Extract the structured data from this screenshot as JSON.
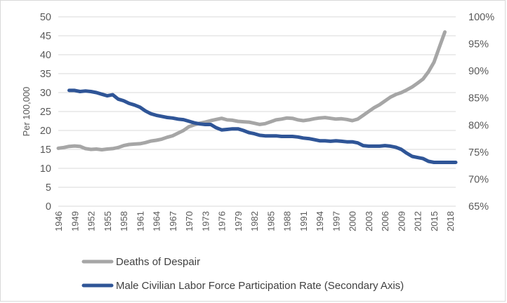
{
  "chart_data": {
    "type": "line",
    "title": "",
    "ylabel": "Per 100,000",
    "y2label": "",
    "ylim": [
      0,
      50
    ],
    "y_ticks": [
      0,
      5,
      10,
      15,
      20,
      25,
      30,
      35,
      40,
      45,
      50
    ],
    "y2lim": [
      0.65,
      1.0
    ],
    "y2_ticks": [
      "65%",
      "70%",
      "75%",
      "80%",
      "85%",
      "90%",
      "95%",
      "100%"
    ],
    "x_ticks": [
      1946,
      1949,
      1952,
      1955,
      1958,
      1961,
      1964,
      1967,
      1970,
      1973,
      1976,
      1979,
      1982,
      1985,
      1988,
      1991,
      1994,
      1997,
      2000,
      2003,
      2006,
      2009,
      2012,
      2015,
      2018
    ],
    "xlim": [
      1946,
      2019
    ],
    "grid": true,
    "legend_position": "bottom",
    "series": [
      {
        "name": "Deaths of Despair",
        "axis": "primary",
        "color": "#a6a6a6",
        "x": [
          1946,
          1947,
          1948,
          1949,
          1950,
          1951,
          1952,
          1953,
          1954,
          1955,
          1956,
          1957,
          1958,
          1959,
          1960,
          1961,
          1962,
          1963,
          1964,
          1965,
          1966,
          1967,
          1968,
          1969,
          1970,
          1971,
          1972,
          1973,
          1974,
          1975,
          1976,
          1977,
          1978,
          1979,
          1980,
          1981,
          1982,
          1983,
          1984,
          1985,
          1986,
          1987,
          1988,
          1989,
          1990,
          1991,
          1992,
          1993,
          1994,
          1995,
          1996,
          1997,
          1998,
          1999,
          2000,
          2001,
          2002,
          2003,
          2004,
          2005,
          2006,
          2007,
          2008,
          2009,
          2010,
          2011,
          2012,
          2013,
          2014,
          2015,
          2016,
          2017
        ],
        "values": [
          15.3,
          15.5,
          15.8,
          15.9,
          15.8,
          15.2,
          15.0,
          15.1,
          14.9,
          15.1,
          15.2,
          15.5,
          16.0,
          16.3,
          16.4,
          16.5,
          16.8,
          17.2,
          17.4,
          17.7,
          18.2,
          18.6,
          19.3,
          20.0,
          21.0,
          21.5,
          21.9,
          22.2,
          22.6,
          22.9,
          23.2,
          22.8,
          22.7,
          22.4,
          22.3,
          22.2,
          21.9,
          21.6,
          21.8,
          22.3,
          22.8,
          23.0,
          23.3,
          23.2,
          22.8,
          22.6,
          22.8,
          23.1,
          23.3,
          23.4,
          23.2,
          23.0,
          23.1,
          22.9,
          22.6,
          23.0,
          24.0,
          25.0,
          26.0,
          26.8,
          27.8,
          28.8,
          29.5,
          30.0,
          30.7,
          31.5,
          32.5,
          33.6,
          35.5,
          38.0,
          42.0,
          46.0
        ]
      },
      {
        "name": "Male Civilian Labor Force Participation Rate (Secondary Axis)",
        "axis": "secondary",
        "color": "#2f5597",
        "x": [
          1948,
          1949,
          1950,
          1951,
          1952,
          1953,
          1954,
          1955,
          1956,
          1957,
          1958,
          1959,
          1960,
          1961,
          1962,
          1963,
          1964,
          1965,
          1966,
          1967,
          1968,
          1969,
          1970,
          1971,
          1972,
          1973,
          1974,
          1975,
          1976,
          1977,
          1978,
          1979,
          1980,
          1981,
          1982,
          1983,
          1984,
          1985,
          1986,
          1987,
          1988,
          1989,
          1990,
          1991,
          1992,
          1993,
          1994,
          1995,
          1996,
          1997,
          1998,
          1999,
          2000,
          2001,
          2002,
          2003,
          2004,
          2005,
          2006,
          2007,
          2008,
          2009,
          2010,
          2011,
          2012,
          2013,
          2014,
          2015,
          2016,
          2017,
          2018,
          2019
        ],
        "values": [
          0.864,
          0.864,
          0.862,
          0.863,
          0.862,
          0.86,
          0.857,
          0.854,
          0.856,
          0.848,
          0.845,
          0.84,
          0.837,
          0.833,
          0.826,
          0.821,
          0.818,
          0.816,
          0.814,
          0.813,
          0.811,
          0.81,
          0.807,
          0.804,
          0.802,
          0.801,
          0.801,
          0.795,
          0.791,
          0.792,
          0.793,
          0.793,
          0.79,
          0.786,
          0.784,
          0.781,
          0.78,
          0.78,
          0.78,
          0.779,
          0.779,
          0.779,
          0.778,
          0.776,
          0.775,
          0.773,
          0.771,
          0.771,
          0.77,
          0.771,
          0.77,
          0.769,
          0.769,
          0.767,
          0.762,
          0.761,
          0.761,
          0.761,
          0.762,
          0.761,
          0.759,
          0.755,
          0.748,
          0.742,
          0.74,
          0.738,
          0.733,
          0.731,
          0.731,
          0.731,
          0.731,
          0.731
        ]
      }
    ]
  }
}
